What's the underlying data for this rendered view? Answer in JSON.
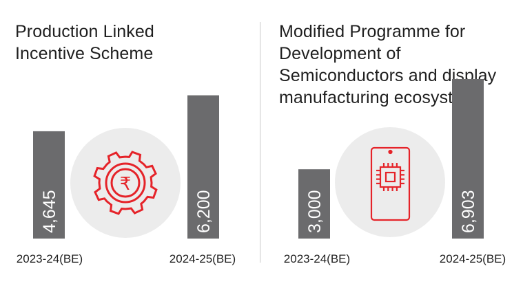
{
  "accent_color": "#e52329",
  "bar_color": "#6b6b6d",
  "icon_bg_color": "#ececec",
  "panels": [
    {
      "title_lines": [
        "Production Linked",
        "Incentive Scheme"
      ],
      "icon": "rupee-gear-icon"
    },
    {
      "title_lines": [
        "Modified Programme for",
        "Development of",
        "Semiconductors and display",
        "manufacturing ecosystem"
      ],
      "icon": "smartphone-chip-icon"
    }
  ],
  "chart_data": [
    {
      "type": "bar",
      "title": "Production Linked Incentive Scheme",
      "categories": [
        "2023-24(BE)",
        "2024-25(BE)"
      ],
      "values": [
        4645,
        6200
      ],
      "value_labels": [
        "4,645",
        "6,200"
      ],
      "xlabel": "",
      "ylabel": ""
    },
    {
      "type": "bar",
      "title": "Modified Programme for Development of Semiconductors and display manufacturing ecosystem",
      "categories": [
        "2023-24(BE)",
        "2024-25(BE)"
      ],
      "values": [
        3000,
        6903
      ],
      "value_labels": [
        "3,000",
        "6,903"
      ],
      "xlabel": "",
      "ylabel": ""
    }
  ]
}
